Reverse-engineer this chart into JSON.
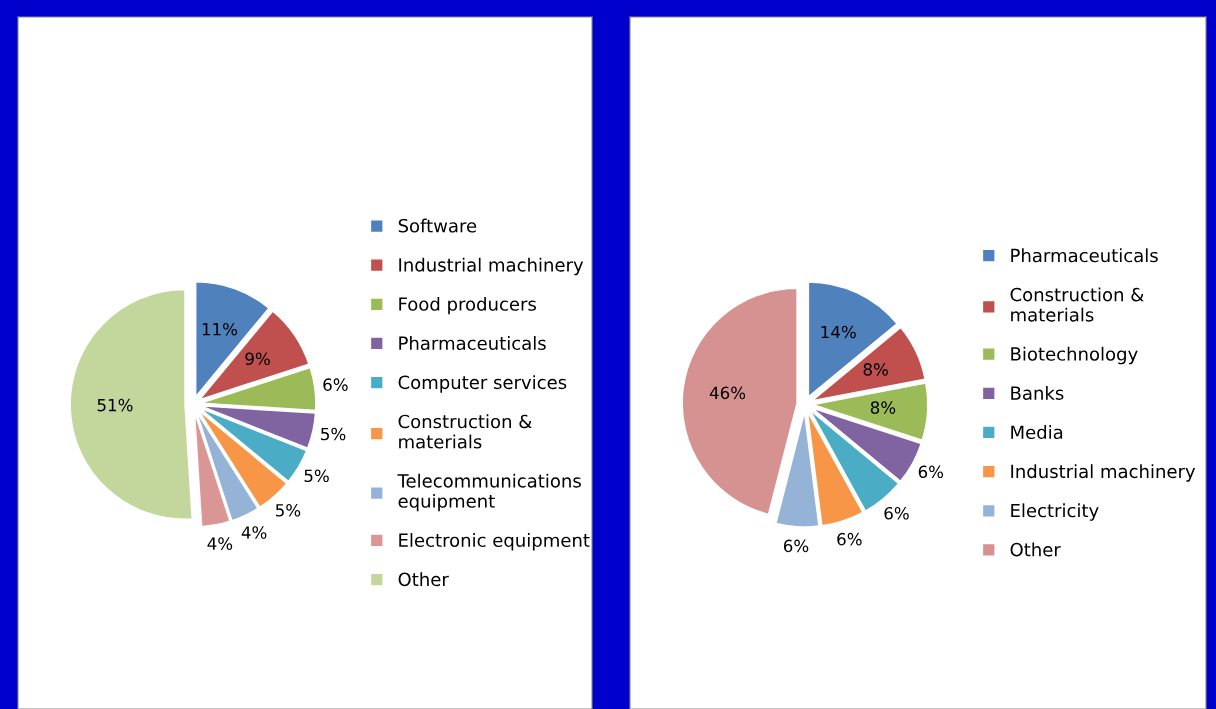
{
  "chart_data": [
    {
      "type": "pie",
      "categories": [
        "Software",
        "Industrial machinery",
        "Food producers",
        "Pharmaceuticals",
        "Computer services",
        "Construction & materials",
        "Telecommunications equipment",
        "Electronic equipment",
        "Other"
      ],
      "values": [
        11,
        9,
        6,
        5,
        5,
        5,
        4,
        4,
        51
      ],
      "value_labels": [
        "11%",
        "9%",
        "6%",
        "5%",
        "5%",
        "5%",
        "4%",
        "4%",
        "51%"
      ],
      "colors": [
        "#4f81bd",
        "#c0504d",
        "#9bbb59",
        "#8064a2",
        "#4bacc6",
        "#f79646",
        "#95b3d7",
        "#d99694",
        "#c3d69b"
      ],
      "legend": "right"
    },
    {
      "type": "pie",
      "categories": [
        "Pharmaceuticals",
        "Construction & materials",
        "Biotechnology",
        "Banks",
        "Media",
        "Industrial machinery",
        "Electricity",
        "Other"
      ],
      "values": [
        14,
        8,
        8,
        6,
        6,
        6,
        6,
        46
      ],
      "value_labels": [
        "14%",
        "8%",
        "8%",
        "6%",
        "6%",
        "6%",
        "6%",
        "46%"
      ],
      "colors": [
        "#4f81bd",
        "#c0504d",
        "#9bbb59",
        "#8064a2",
        "#4bacc6",
        "#f79646",
        "#95b3d7",
        "#d69290"
      ],
      "legend": "right"
    }
  ]
}
